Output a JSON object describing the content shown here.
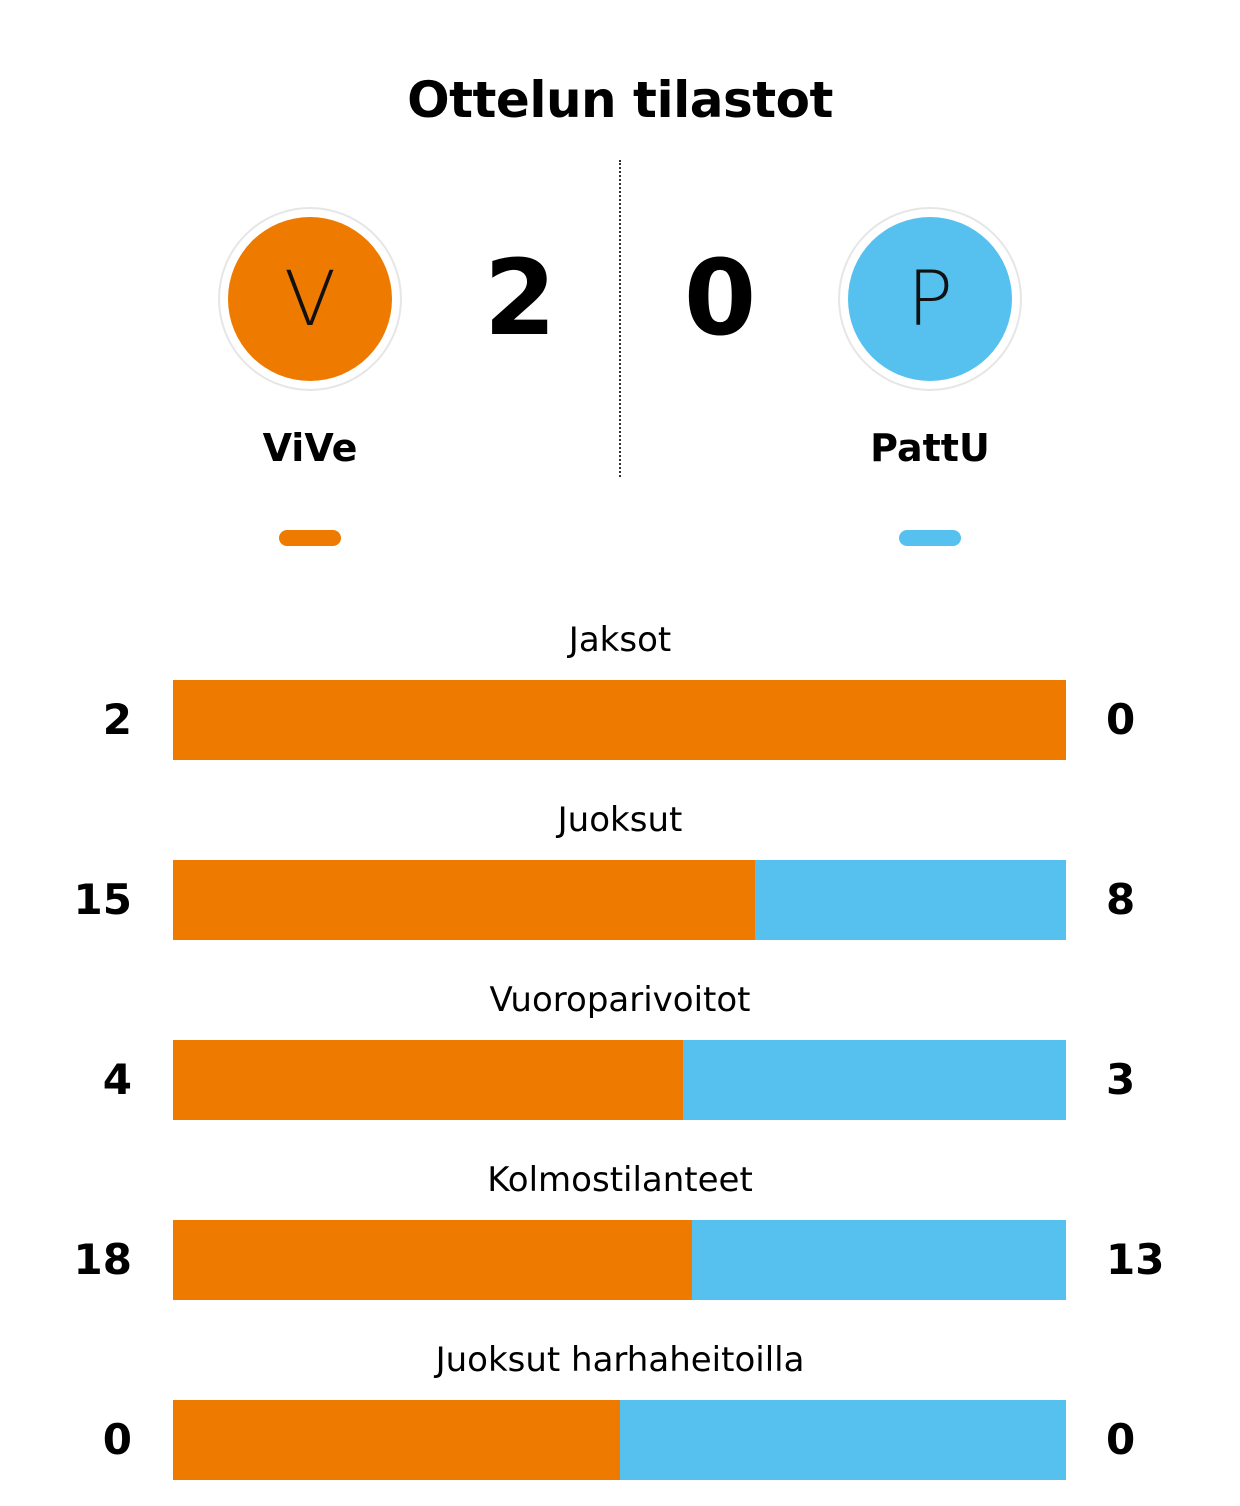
{
  "title": "Ottelun tilastot",
  "colors": {
    "home": "#ee7b00",
    "away": "#56c1ef"
  },
  "home": {
    "name": "ViVe",
    "logo_letter": "V",
    "score": "2"
  },
  "away": {
    "name": "PattU",
    "logo_letter": "P",
    "score": "0"
  },
  "chart_data": {
    "type": "bar",
    "orientation": "horizontal",
    "stacked": "percent",
    "title": "Ottelun tilastot",
    "categories": [
      "Jaksot",
      "Juoksut",
      "Vuoroparivoitot",
      "Kolmostilanteet",
      "Juoksut harhaheitoilla"
    ],
    "series": [
      {
        "name": "ViVe",
        "values": [
          2,
          15,
          4,
          18,
          0
        ]
      },
      {
        "name": "PattU",
        "values": [
          0,
          8,
          3,
          13,
          0
        ]
      }
    ]
  }
}
